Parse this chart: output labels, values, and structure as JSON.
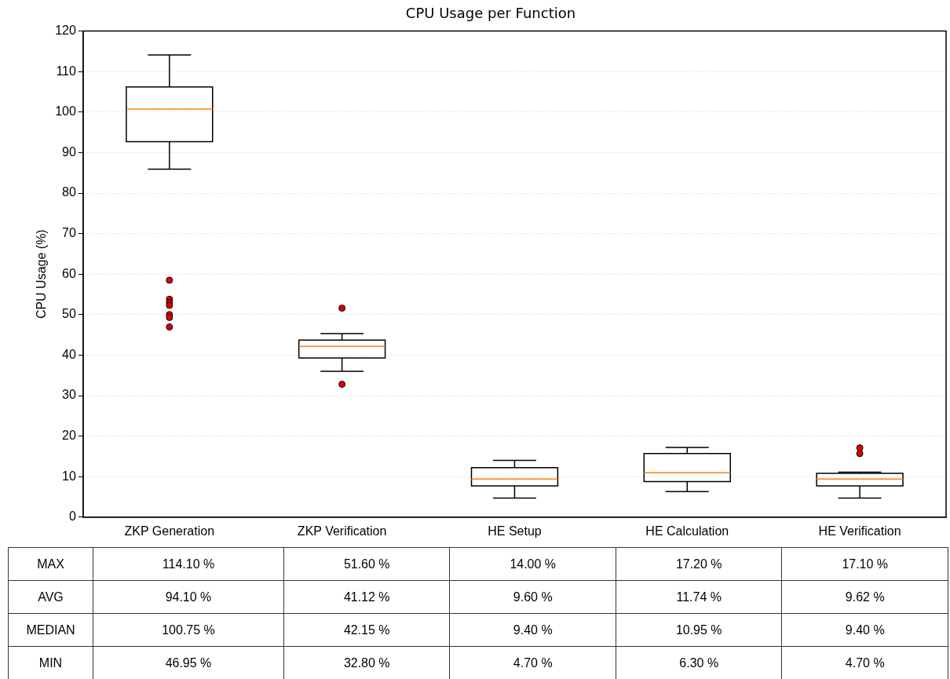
{
  "chart_data": {
    "type": "box",
    "title": "CPU Usage per Function",
    "ylabel": "CPU Usage (%)",
    "categories": [
      "ZKP Generation",
      "ZKP Verification",
      "HE Setup",
      "HE Calculation",
      "HE Verification"
    ],
    "boxes": [
      {
        "low": 85.9,
        "q1": 92.7,
        "median": 100.75,
        "q3": 106.2,
        "high": 114.1,
        "outliers": [
          58.5,
          53.8,
          53.0,
          52.3,
          50.0,
          49.3,
          46.95
        ]
      },
      {
        "low": 36.0,
        "q1": 39.3,
        "median": 42.15,
        "q3": 43.7,
        "high": 45.3,
        "outliers": [
          51.6,
          32.8
        ]
      },
      {
        "low": 4.7,
        "q1": 7.7,
        "median": 9.4,
        "q3": 12.2,
        "high": 14.0
      },
      {
        "low": 6.3,
        "q1": 8.8,
        "median": 10.95,
        "q3": 15.7,
        "high": 17.2
      },
      {
        "low": 4.7,
        "q1": 7.7,
        "median": 9.4,
        "q3": 10.8,
        "high": 11.1,
        "outliers": [
          15.7,
          17.1
        ]
      }
    ],
    "ylim": [
      0,
      120
    ],
    "yticks": [
      0,
      10,
      20,
      30,
      40,
      50,
      60,
      70,
      80,
      90,
      100,
      110,
      120
    ],
    "grid": "y",
    "marker": "circle",
    "y_categories": [
      "MAX",
      "AVG",
      "MEDIAN",
      "MIN"
    ],
    "cell_labels": [
      [
        "114.10 %",
        "51.60 %",
        "14.00 %",
        "17.20 %",
        "17.10 %"
      ],
      [
        "94.10 %",
        "41.12 %",
        "9.60 %",
        "11.74 %",
        "9.62 %"
      ],
      [
        "100.75 %",
        "42.15 %",
        "9.40 %",
        "10.95 %",
        "9.40 %"
      ],
      [
        "46.95 %",
        "32.80 %",
        "4.70 %",
        "6.30 %",
        "4.70 %"
      ]
    ]
  }
}
